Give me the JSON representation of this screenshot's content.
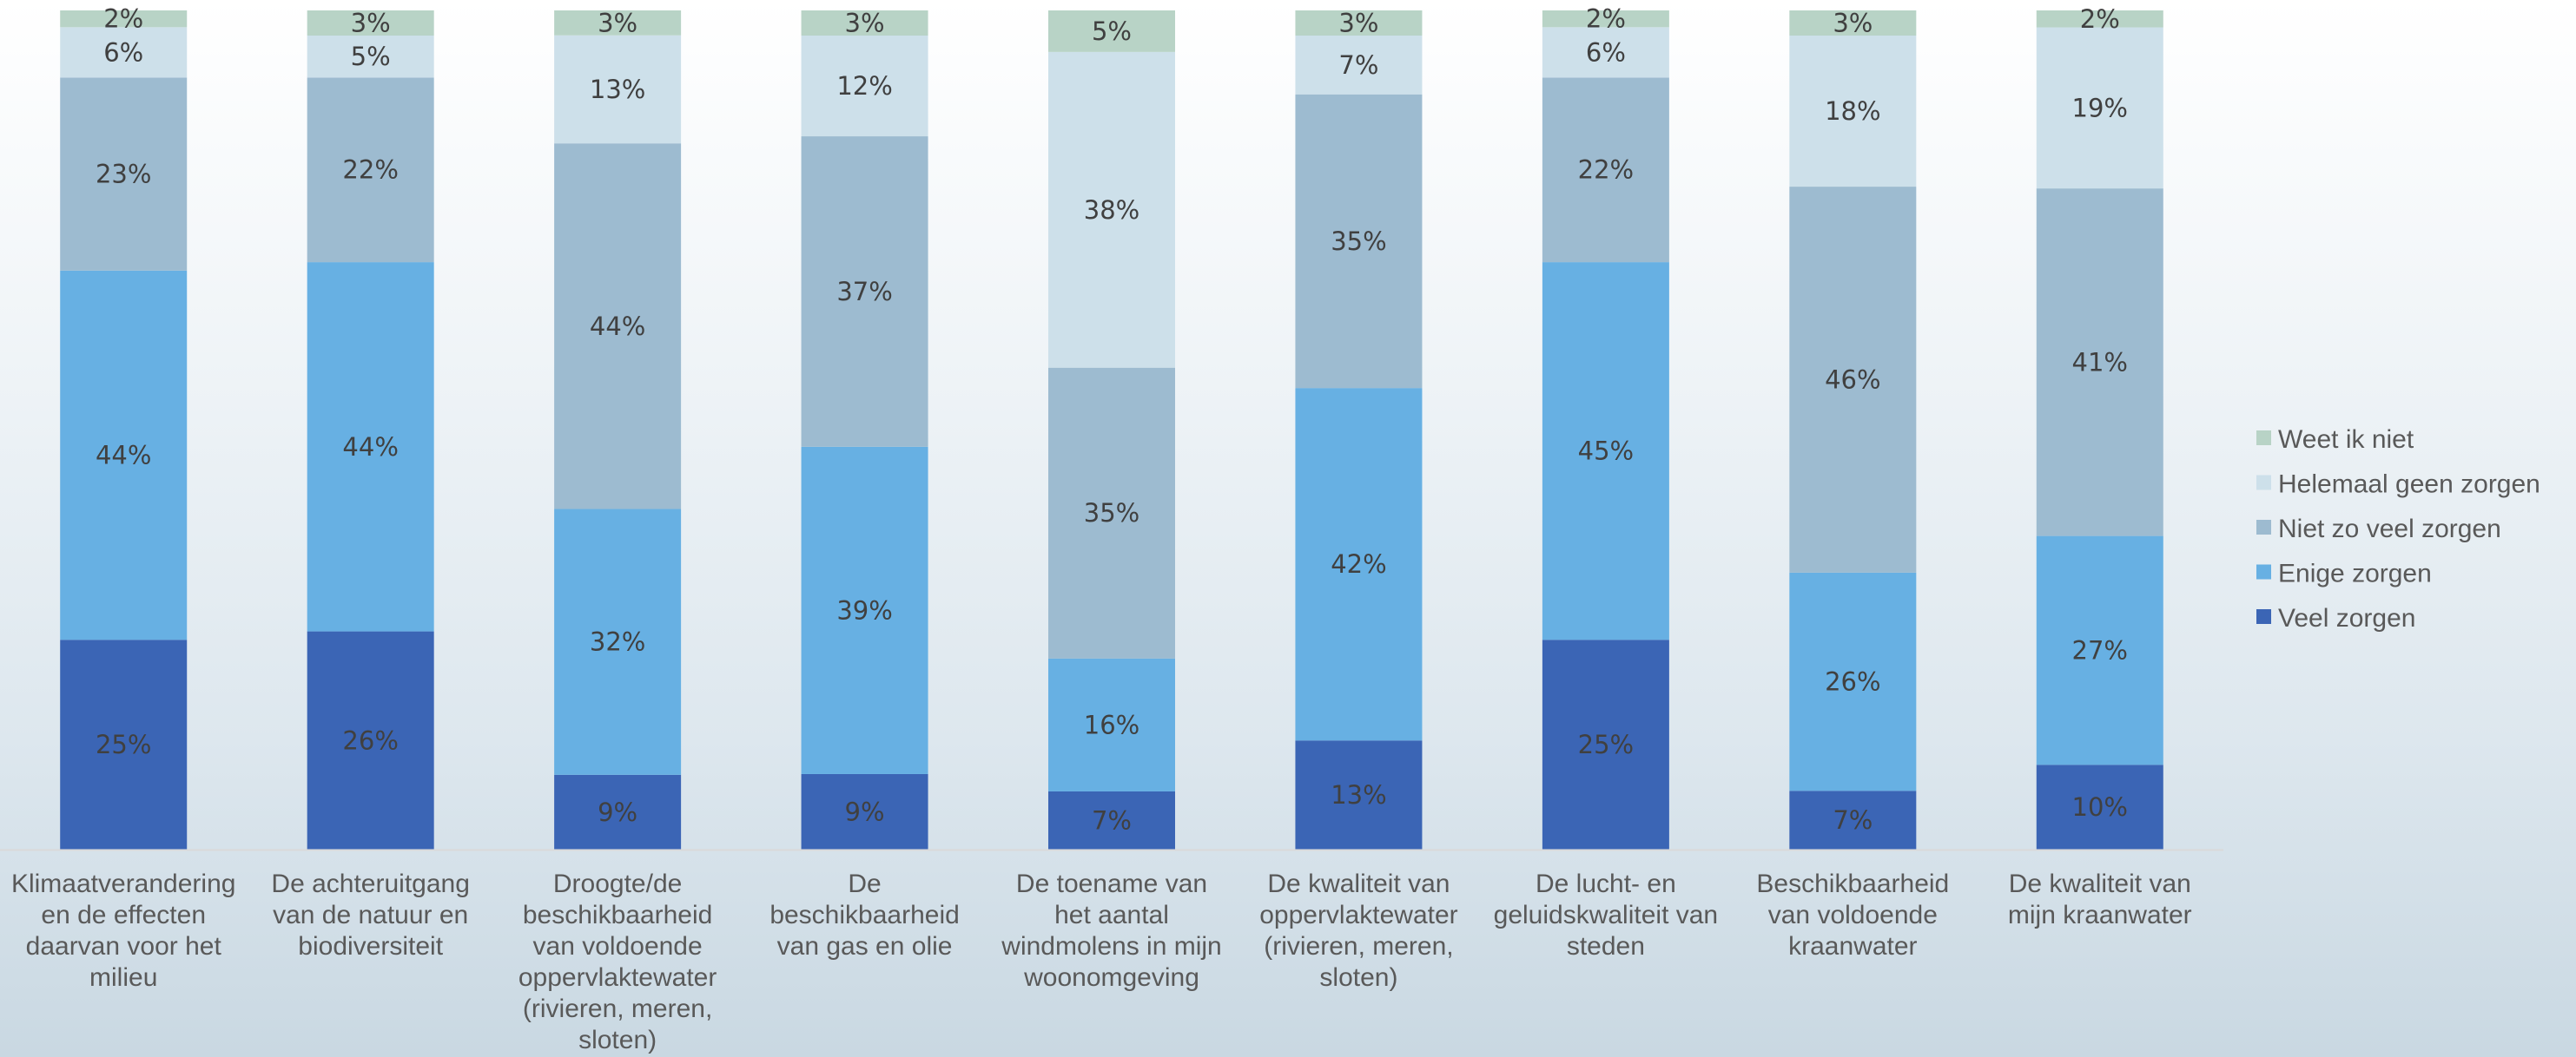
{
  "chart_data": {
    "type": "bar",
    "stacked": true,
    "percent_stacked": true,
    "categories": [
      [
        "Klimaatverandering",
        "en de effecten",
        "daarvan voor het",
        "milieu"
      ],
      [
        "De achteruitgang",
        "van de natuur en",
        "biodiversiteit"
      ],
      [
        "Droogte/de",
        "beschikbaarheid",
        "van voldoende",
        "oppervlaktewater",
        "(rivieren, meren,",
        "sloten)"
      ],
      [
        "De",
        "beschikbaarheid",
        "van gas en olie"
      ],
      [
        "De toename van",
        "het aantal",
        "windmolens in mijn",
        "woonomgeving"
      ],
      [
        "De kwaliteit van",
        "oppervlaktewater",
        "(rivieren, meren,",
        "sloten)"
      ],
      [
        "De lucht- en",
        "geluidskwaliteit van",
        "steden"
      ],
      [
        "Beschikbaarheid",
        "van voldoende",
        "kraanwater"
      ],
      [
        "De kwaliteit van",
        "mijn kraanwater"
      ]
    ],
    "series": [
      {
        "name": "Veel zorgen",
        "color": "#3b65b5",
        "values": [
          25,
          26,
          9,
          9,
          7,
          13,
          25,
          7,
          10
        ]
      },
      {
        "name": "Enige zorgen",
        "color": "#67b0e3",
        "values": [
          44,
          44,
          32,
          39,
          16,
          42,
          45,
          26,
          27
        ]
      },
      {
        "name": "Niet zo veel zorgen",
        "color": "#9dbbd0",
        "values": [
          23,
          22,
          44,
          37,
          35,
          35,
          22,
          46,
          41
        ]
      },
      {
        "name": "Helemaal geen zorgen",
        "color": "#cde0ea",
        "values": [
          6,
          5,
          13,
          12,
          38,
          7,
          6,
          18,
          19
        ]
      },
      {
        "name": "Weet ik niet",
        "color": "#b8d3c6",
        "values": [
          2,
          3,
          3,
          3,
          5,
          3,
          2,
          3,
          2
        ]
      }
    ],
    "data_labels": [
      [
        "25%",
        "26%",
        "9%",
        "9%",
        "7%",
        "13%",
        "25%",
        "7%",
        "10%"
      ],
      [
        "44%",
        "44%",
        "32%",
        "39%",
        "16%",
        "42%",
        "45%",
        "26%",
        "27%"
      ],
      [
        "23%",
        "22%",
        "44%",
        "37%",
        "35%",
        "35%",
        "22%",
        "46%",
        "41%"
      ],
      [
        "6%",
        "5%",
        "13%",
        "12%",
        "38%",
        "7%",
        "6%",
        "18%",
        "19%"
      ],
      [
        "2%",
        "3%",
        "3%",
        "3%",
        "5%",
        "3%",
        "2%",
        "3%",
        "2%"
      ]
    ],
    "legend": {
      "position": "right",
      "items": [
        "Weet ik niet",
        "Helemaal geen zorgen",
        "Niet zo veel zorgen",
        "Enige zorgen",
        "Veel zorgen"
      ]
    },
    "title": "",
    "xlabel": "",
    "ylabel": "",
    "ylim": [
      0,
      100
    ],
    "grid": false
  }
}
